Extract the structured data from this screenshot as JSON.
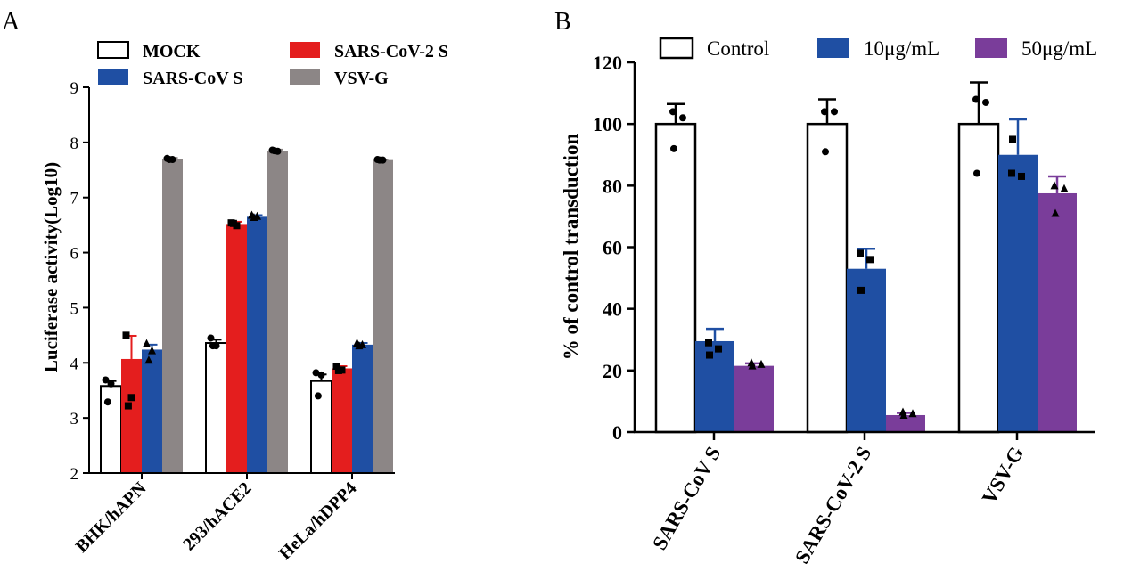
{
  "colors": {
    "mock": "#ffffff",
    "sars2": "#e41e1e",
    "sars1": "#1f4fa3",
    "vsvg": "#8c8686",
    "control": "#ffffff",
    "d10": "#1f4fa3",
    "d50": "#7a3d9a",
    "axis": "#000000"
  },
  "chart_data": [
    {
      "panel_label": "A",
      "type": "bar",
      "ylabel": "Luciferase activity(Log10)",
      "ylim": [
        2,
        9
      ],
      "yticks": [
        "2",
        "3",
        "4",
        "5",
        "6",
        "7",
        "8",
        "9"
      ],
      "categories": [
        "BHK/hAPN",
        "293/hACE2",
        "HeLa/hDPP4"
      ],
      "legend": [
        "MOCK",
        "SARS-CoV-2  S",
        "SARS-CoV S",
        "VSV-G"
      ],
      "legend_position": "top",
      "series": [
        {
          "name": "MOCK",
          "values": [
            3.58,
            4.36,
            3.67
          ],
          "errors": [
            0.09,
            0.06,
            0.12
          ],
          "points": [
            [
              3.69,
              3.62,
              3.29
            ],
            [
              4.45,
              4.31,
              4.31
            ],
            [
              3.82,
              3.78,
              3.4
            ]
          ]
        },
        {
          "name": "SARS-CoV-2  S",
          "values": [
            4.07,
            6.52,
            3.9
          ],
          "errors": [
            0.42,
            0.04,
            0.04
          ],
          "points": [
            [
              4.5,
              3.37,
              3.22
            ],
            [
              6.54,
              6.49,
              6.53
            ],
            [
              3.94,
              3.87,
              3.86
            ]
          ]
        },
        {
          "name": "SARS-CoV S",
          "values": [
            4.24,
            6.65,
            4.33
          ],
          "errors": [
            0.09,
            0.03,
            0.03
          ],
          "points": [
            [
              4.35,
              4.22,
              4.05
            ],
            [
              6.68,
              6.66,
              6.64
            ],
            [
              4.36,
              4.33,
              4.31
            ]
          ]
        },
        {
          "name": "VSV-G",
          "values": [
            7.7,
            7.85,
            7.68
          ],
          "errors": [
            0.02,
            0.02,
            0.01
          ],
          "points": [
            [
              7.71,
              7.69,
              7.69
            ],
            [
              7.86,
              7.84,
              7.85
            ],
            [
              7.69,
              7.68,
              7.68
            ]
          ]
        }
      ],
      "grid": false
    },
    {
      "panel_label": "B",
      "type": "bar",
      "ylabel": "% of control transduction",
      "ylim": [
        0,
        120
      ],
      "yticks": [
        "0",
        "20",
        "40",
        "60",
        "80",
        "100",
        "120"
      ],
      "categories": [
        "SARS-CoV S",
        "SARS-CoV-2 S",
        "VSV-G"
      ],
      "legend": [
        "Control",
        "10μg/mL",
        "50μg/mL"
      ],
      "legend_position": "top",
      "series": [
        {
          "name": "Control",
          "values": [
            100,
            100,
            100
          ],
          "errors": [
            6.5,
            8,
            13.5
          ],
          "points": [
            [
              104,
              102,
              92
            ],
            [
              104,
              104,
              91
            ],
            [
              108,
              107,
              84
            ]
          ]
        },
        {
          "name": "10μg/mL",
          "values": [
            29.5,
            53,
            90
          ],
          "errors": [
            4,
            6.5,
            11.5
          ],
          "points": [
            [
              29,
              27,
              25
            ],
            [
              58,
              56,
              46
            ],
            [
              84,
              83,
              95
            ]
          ]
        },
        {
          "name": "50μg/mL",
          "values": [
            21.5,
            5.5,
            77.5
          ],
          "errors": [
            0.8,
            0.7,
            5.5
          ],
          "points": [
            [
              22.5,
              22,
              21.5
            ],
            [
              6.5,
              6,
              5.5
            ],
            [
              80,
              79,
              71
            ]
          ]
        }
      ],
      "grid": false
    }
  ]
}
